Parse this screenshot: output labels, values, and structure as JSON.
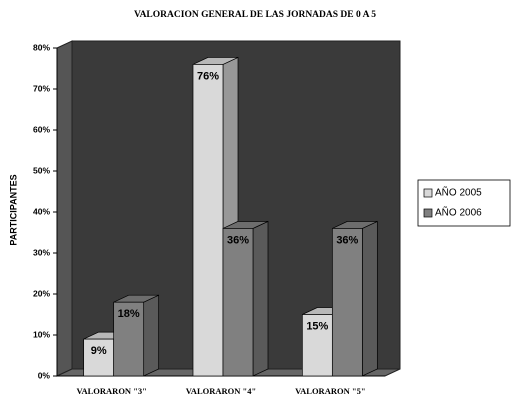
{
  "chart_data": {
    "type": "bar3d",
    "title": "VALORACION GENERAL DE LAS JORNADAS DE 0 A 5",
    "y_label": "PARTICIPANTES",
    "categories": [
      "VALORARON \"3\"",
      "VALORARON \"4\"",
      "VALORARON \"5\""
    ],
    "series": [
      {
        "name": "AÑO 2005",
        "color": "#d9d9d9",
        "values": [
          9,
          76,
          15
        ],
        "value_labels": [
          "9%",
          "76%",
          "15%"
        ]
      },
      {
        "name": "AÑO 2006",
        "color": "#808080",
        "values": [
          18,
          36,
          36
        ],
        "value_labels": [
          "18%",
          "36%",
          "36%"
        ]
      }
    ],
    "ylim": [
      0,
      80
    ],
    "yticks": [
      {
        "value": 0,
        "label": "0%"
      },
      {
        "value": 10,
        "label": "10%"
      },
      {
        "value": 20,
        "label": "20%"
      },
      {
        "value": 30,
        "label": "30%"
      },
      {
        "value": 40,
        "label": "40%"
      },
      {
        "value": 50,
        "label": "50%"
      },
      {
        "value": 60,
        "label": "60%"
      },
      {
        "value": 70,
        "label": "70%"
      },
      {
        "value": 80,
        "label": "80%"
      }
    ],
    "grid": false,
    "legend": "right"
  }
}
